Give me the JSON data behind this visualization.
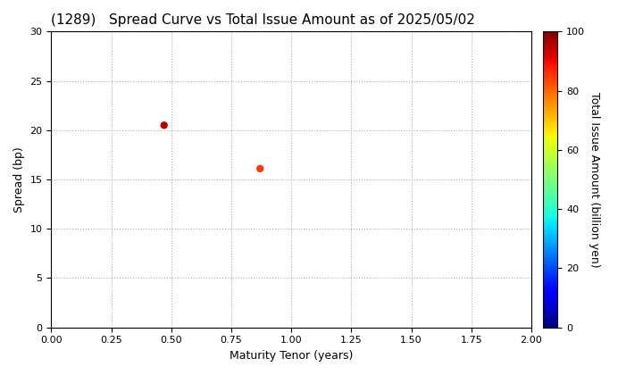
{
  "title": "(1289)   Spread Curve vs Total Issue Amount as of 2025/05/02",
  "xlabel": "Maturity Tenor (years)",
  "ylabel": "Spread (bp)",
  "colorbar_label": "Total Issue Amount (billion yen)",
  "xlim": [
    0.0,
    2.0
  ],
  "ylim": [
    0,
    30
  ],
  "xticks": [
    0.0,
    0.25,
    0.5,
    0.75,
    1.0,
    1.25,
    1.5,
    1.75,
    2.0
  ],
  "yticks": [
    0,
    5,
    10,
    15,
    20,
    25,
    30
  ],
  "colorbar_ticks": [
    0,
    20,
    40,
    60,
    80,
    100
  ],
  "colorbar_lim": [
    0,
    100
  ],
  "scatter_x": [
    0.47,
    0.87
  ],
  "scatter_y": [
    20.5,
    16.1
  ],
  "scatter_values": [
    95,
    85
  ],
  "marker_size": 25,
  "grid_color": "#aaaaaa",
  "background_color": "#ffffff",
  "colormap": "jet",
  "title_fontsize": 11,
  "axis_fontsize": 9,
  "tick_fontsize": 8
}
